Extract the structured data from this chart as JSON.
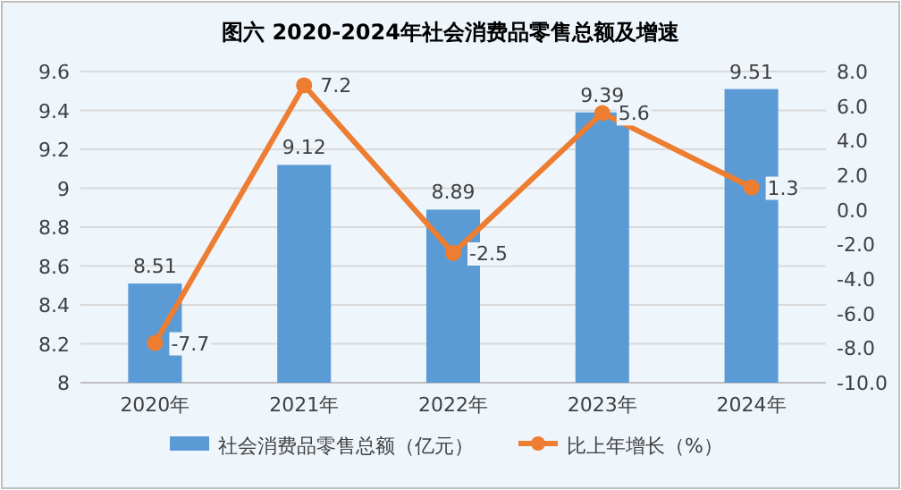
{
  "chart_data": {
    "type": "bar",
    "title": "图六  2020-2024年社会消费品零售总额及增速",
    "categories": [
      "2020年",
      "2021年",
      "2022年",
      "2023年",
      "2024年"
    ],
    "series": [
      {
        "name": "社会消费品零售总额（亿元）",
        "color": "#5b9bd5",
        "values": [
          8.51,
          9.12,
          8.89,
          9.39,
          9.51
        ]
      },
      {
        "name": "比上年增长（%）",
        "type": "line",
        "axis": "y2",
        "color": "#ed7d31",
        "values": [
          -7.7,
          7.2,
          -2.5,
          5.6,
          1.3
        ]
      }
    ],
    "ylim": [
      8,
      9.6
    ],
    "yticks": [
      8,
      8.2,
      8.4,
      8.6,
      8.8,
      {
        "value": 9,
        "label": "9"
      },
      9.2,
      9.4,
      9.6
    ],
    "y2lim": [
      -10,
      8
    ],
    "y2ticks": [
      {
        "value": -10,
        "label": "-10.0"
      },
      {
        "value": -8,
        "label": "-8.0"
      },
      {
        "value": -6,
        "label": "-6.0"
      },
      {
        "value": -4,
        "label": "-4.0"
      },
      {
        "value": -2,
        "label": "-2.0"
      },
      {
        "value": 0,
        "label": "0.0"
      },
      {
        "value": 2,
        "label": "2.0"
      },
      {
        "value": 4,
        "label": "4.0"
      },
      {
        "value": 6,
        "label": "6.0"
      },
      {
        "value": 8,
        "label": "8.0"
      }
    ],
    "grid": "y",
    "legend": "bottom",
    "marker": "circle",
    "data_labels": true
  }
}
